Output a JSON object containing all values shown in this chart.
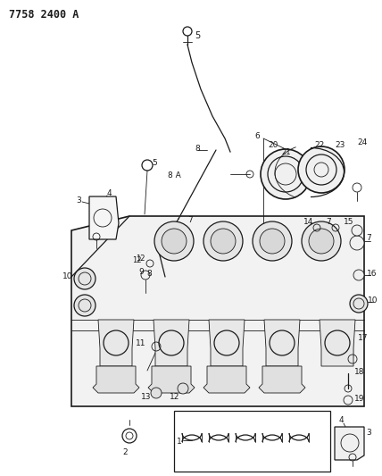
{
  "title": "7758 2400 A",
  "bg_color": "#ffffff",
  "line_color": "#1a1a1a",
  "fig_width": 4.28,
  "fig_height": 5.33,
  "dpi": 100,
  "title_fontsize": 8.5,
  "title_fontweight": "bold"
}
